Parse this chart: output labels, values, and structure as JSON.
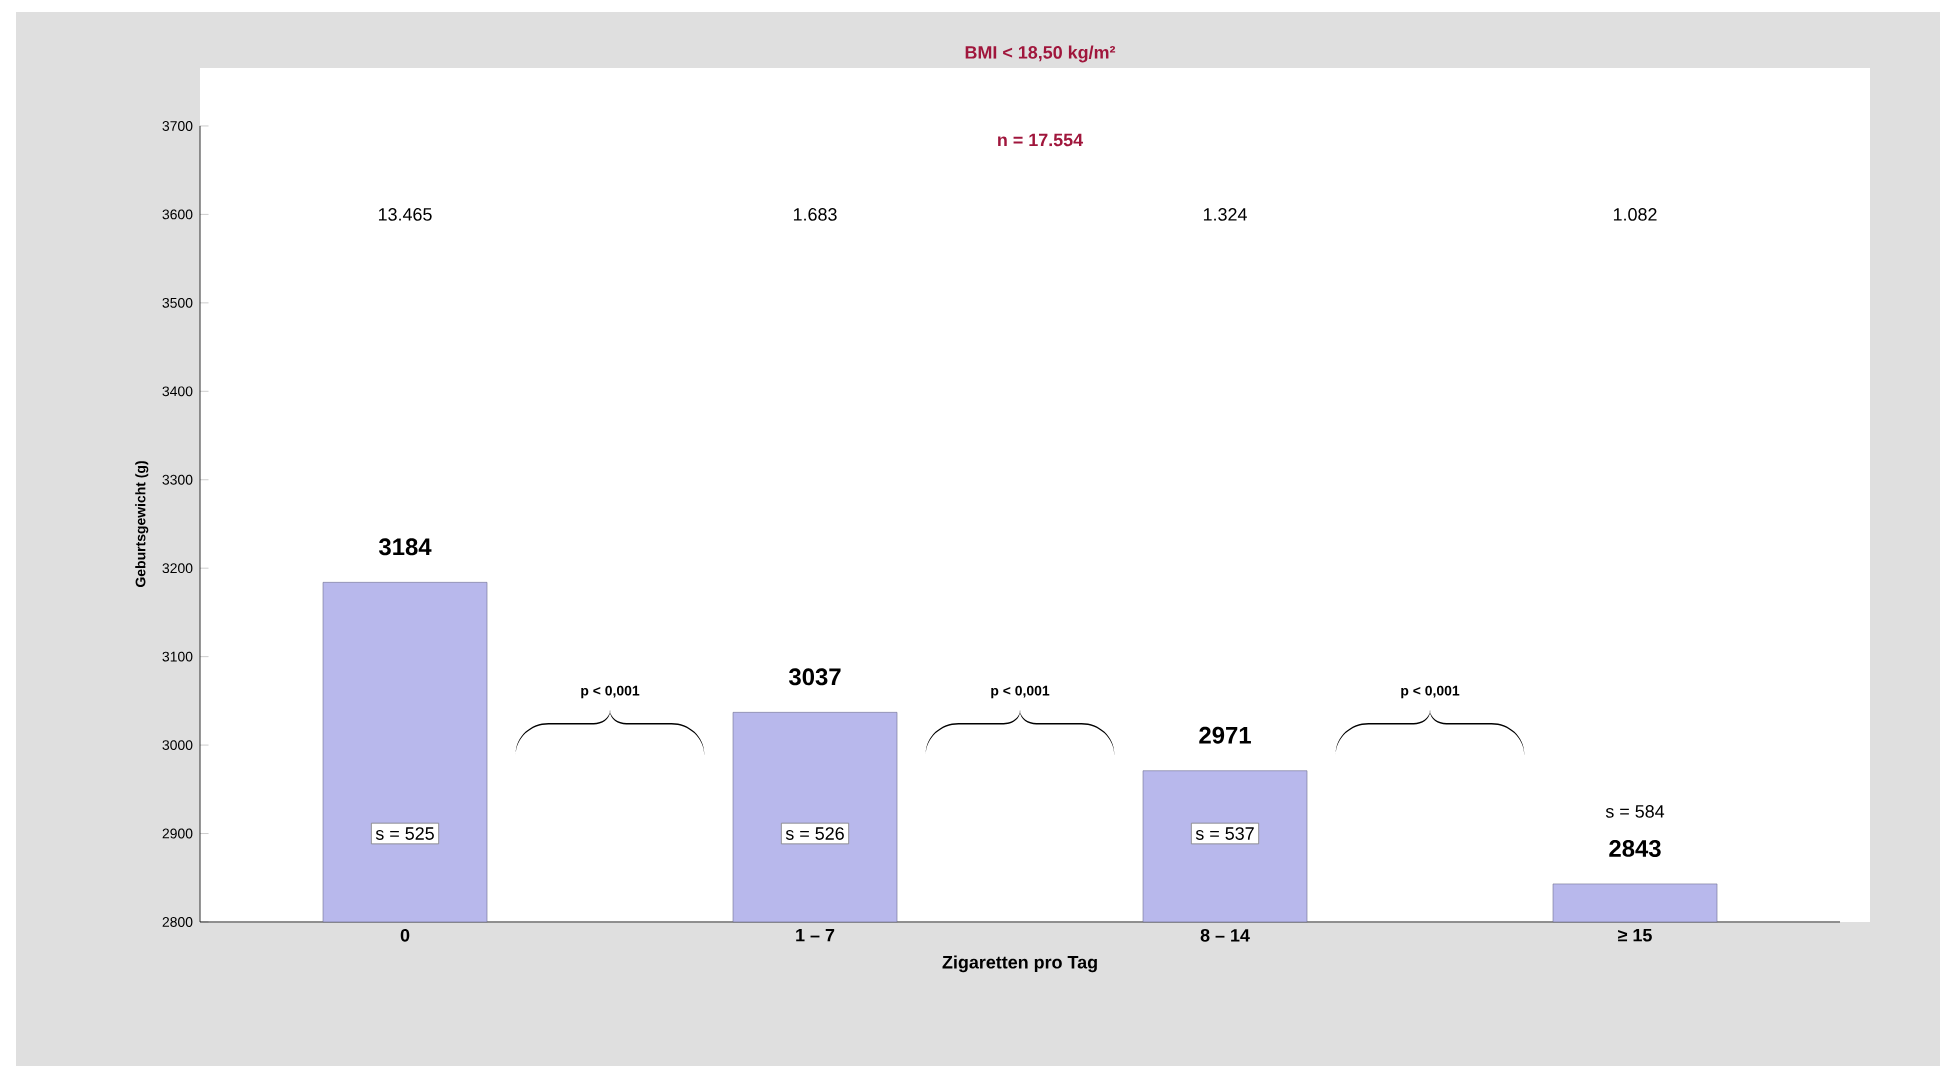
{
  "chart_data": {
    "type": "bar",
    "title": "BMI < 18,50 kg/m²",
    "subtitle": "n = 17.554",
    "xlabel": "Zigaretten pro Tag",
    "ylabel": "Geburtsgewicht (g)",
    "categories": [
      "0",
      "1 – 7",
      "8 – 14",
      "≥ 15"
    ],
    "values": [
      3184,
      3037,
      2971,
      2843
    ],
    "color": "#b8b8ec",
    "data_labels": true,
    "ylim": [
      2800,
      3700
    ],
    "yticks": [
      2800,
      2900,
      3000,
      3100,
      3200,
      3300,
      3400,
      3500,
      3600,
      3700
    ],
    "grid": false,
    "annotations": [
      "13.465",
      "1.683",
      "1.324",
      "1.082",
      "s = 525",
      "s = 526",
      "s = 537",
      "s = 584",
      "p < 0,001",
      "p < 0,001",
      "p < 0,001"
    ]
  }
}
